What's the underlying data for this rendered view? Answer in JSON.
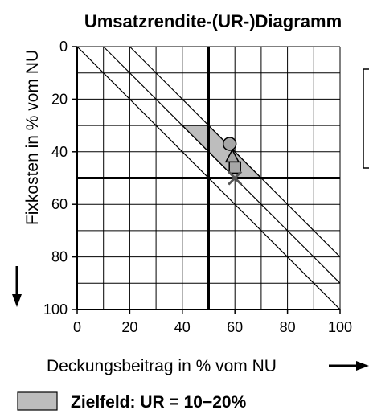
{
  "chart_data": {
    "type": "scatter",
    "title": "Umsatzrendite-(UR-)Diagramm",
    "xlabel": "Deckungsbeitrag in % vom NU",
    "ylabel": "Fixkosten in % vom NU",
    "xlim": [
      0,
      100
    ],
    "ylim": [
      0,
      100
    ],
    "y_inverted": true,
    "x_ticks": [
      "0",
      "20",
      "40",
      "60",
      "80",
      "100"
    ],
    "y_ticks": [
      "0",
      "20",
      "40",
      "60",
      "80",
      "100"
    ],
    "grid_step": 10,
    "reference_lines": {
      "x": 50,
      "y": 50
    },
    "diagonals": [
      {
        "ur": 0
      },
      {
        "ur": 10
      },
      {
        "ur": 20
      }
    ],
    "target_zone": {
      "label": "Zielfeld: UR = 10−20%",
      "ur_min": 10,
      "ur_max": 20,
      "fixkosten_min": 30,
      "fixkosten_max": 50,
      "color": "#bdbdbd"
    },
    "points": [
      {
        "marker": "circle",
        "x": 58,
        "y": 37
      },
      {
        "marker": "triangle",
        "x": 59,
        "y": 42
      },
      {
        "marker": "square",
        "x": 60,
        "y": 46
      },
      {
        "marker": "x",
        "x": 60,
        "y": 50
      }
    ],
    "marker_color": "#a6a6a6",
    "grid": true
  }
}
